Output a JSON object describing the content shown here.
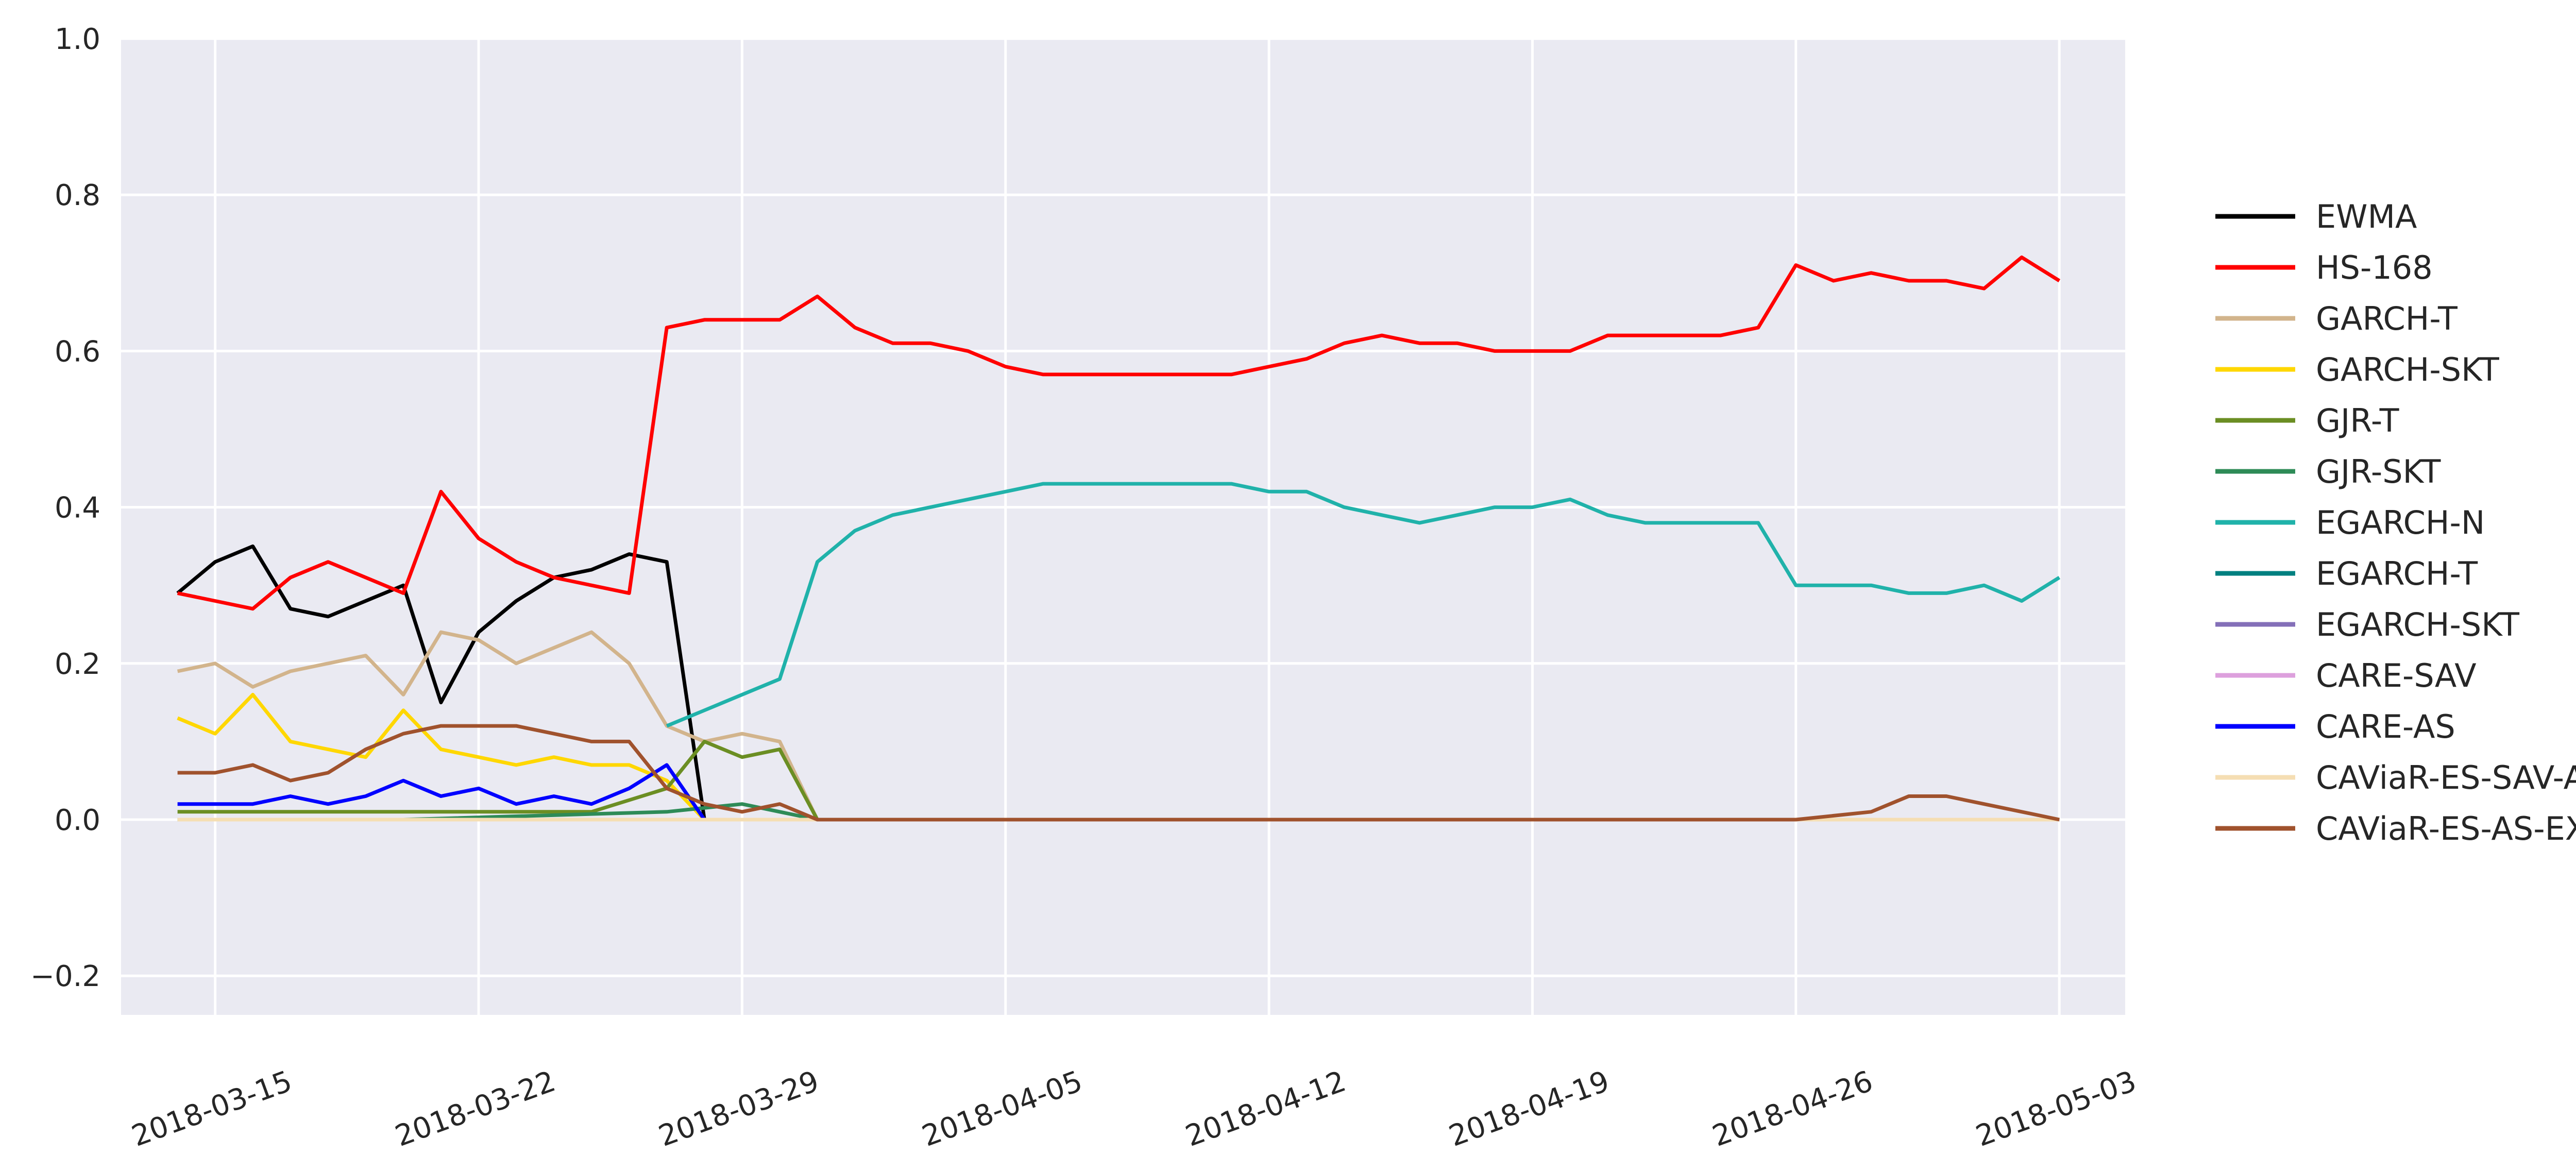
{
  "chart_data": {
    "type": "line",
    "title": "",
    "xlabel": "",
    "ylabel": "",
    "x_axis": {
      "type": "date",
      "range": [
        "2018-03-12T12:00",
        "2018-05-04T18:00"
      ],
      "ticks": [
        "2018-03-15",
        "2018-03-22",
        "2018-03-29",
        "2018-04-05",
        "2018-04-12",
        "2018-04-19",
        "2018-04-26",
        "2018-05-03"
      ]
    },
    "y_axis": {
      "range": [
        -0.25,
        1.0
      ],
      "ticks": [
        {
          "value": -0.2,
          "label": "−0.2"
        },
        {
          "value": 0.0,
          "label": "0.0"
        },
        {
          "value": 0.2,
          "label": "0.2"
        },
        {
          "value": 0.4,
          "label": "0.4"
        },
        {
          "value": 0.6,
          "label": "0.6"
        },
        {
          "value": 0.8,
          "label": "0.8"
        },
        {
          "value": 1.0,
          "label": "1.0"
        }
      ]
    },
    "grid": true,
    "style": {
      "plot_background": "#eaeaf2",
      "grid_color": "#ffffff"
    },
    "legend": {
      "placement": "right, outside plot"
    },
    "series": [
      {
        "name": "EWMA",
        "color": "#000000",
        "x": [
          "2018-03-14",
          "2018-03-15",
          "2018-03-16",
          "2018-03-17",
          "2018-03-18",
          "2018-03-19",
          "2018-03-20",
          "2018-03-21",
          "2018-03-22",
          "2018-03-23",
          "2018-03-24",
          "2018-03-25",
          "2018-03-26",
          "2018-03-27",
          "2018-03-28",
          "2018-03-29",
          "2018-04-05",
          "2018-04-12",
          "2018-04-19",
          "2018-04-26",
          "2018-05-03"
        ],
        "values": [
          0.29,
          0.33,
          0.35,
          0.27,
          0.26,
          0.28,
          0.3,
          0.15,
          0.24,
          0.28,
          0.31,
          0.32,
          0.34,
          0.33,
          0.0,
          0.0,
          0.0,
          0.0,
          0.0,
          0.0,
          0.0
        ]
      },
      {
        "name": "HS-168",
        "color": "#ff0000",
        "x": [
          "2018-03-14",
          "2018-03-15",
          "2018-03-16",
          "2018-03-17",
          "2018-03-18",
          "2018-03-19",
          "2018-03-20",
          "2018-03-21",
          "2018-03-22",
          "2018-03-23",
          "2018-03-24",
          "2018-03-25",
          "2018-03-26",
          "2018-03-27",
          "2018-03-28",
          "2018-03-29",
          "2018-03-30",
          "2018-03-31",
          "2018-04-01",
          "2018-04-02",
          "2018-04-03",
          "2018-04-04",
          "2018-04-05",
          "2018-04-06",
          "2018-04-07",
          "2018-04-08",
          "2018-04-09",
          "2018-04-10",
          "2018-04-11",
          "2018-04-12",
          "2018-04-13",
          "2018-04-14",
          "2018-04-15",
          "2018-04-16",
          "2018-04-17",
          "2018-04-18",
          "2018-04-19",
          "2018-04-20",
          "2018-04-21",
          "2018-04-22",
          "2018-04-23",
          "2018-04-24",
          "2018-04-25",
          "2018-04-26",
          "2018-04-27",
          "2018-04-28",
          "2018-04-29",
          "2018-04-30",
          "2018-05-01",
          "2018-05-02",
          "2018-05-03"
        ],
        "values": [
          0.29,
          0.28,
          0.27,
          0.31,
          0.33,
          0.31,
          0.29,
          0.42,
          0.36,
          0.33,
          0.31,
          0.3,
          0.29,
          0.63,
          0.64,
          0.64,
          0.64,
          0.67,
          0.63,
          0.61,
          0.61,
          0.6,
          0.58,
          0.57,
          0.57,
          0.57,
          0.57,
          0.57,
          0.57,
          0.58,
          0.59,
          0.61,
          0.62,
          0.61,
          0.61,
          0.6,
          0.6,
          0.6,
          0.62,
          0.62,
          0.62,
          0.62,
          0.63,
          0.71,
          0.69,
          0.7,
          0.69,
          0.69,
          0.68,
          0.72,
          0.69
        ]
      },
      {
        "name": "GARCH-T",
        "color": "#d2b48c",
        "x": [
          "2018-03-14",
          "2018-03-15",
          "2018-03-16",
          "2018-03-17",
          "2018-03-18",
          "2018-03-19",
          "2018-03-20",
          "2018-03-21",
          "2018-03-22",
          "2018-03-23",
          "2018-03-24",
          "2018-03-25",
          "2018-03-26",
          "2018-03-27",
          "2018-03-28",
          "2018-03-29",
          "2018-03-30",
          "2018-03-31",
          "2018-04-02",
          "2018-04-05",
          "2018-04-11",
          "2018-04-12",
          "2018-04-13",
          "2018-04-19",
          "2018-04-26",
          "2018-05-03"
        ],
        "values": [
          0.19,
          0.2,
          0.17,
          0.19,
          0.2,
          0.21,
          0.16,
          0.24,
          0.23,
          0.2,
          0.22,
          0.24,
          0.2,
          0.12,
          0.1,
          0.11,
          0.1,
          0.0,
          0.0,
          0.0,
          0.0,
          0.0,
          0.0,
          0.0,
          0.0,
          0.0
        ]
      },
      {
        "name": "GARCH-SKT",
        "color": "#ffd700",
        "x": [
          "2018-03-14",
          "2018-03-15",
          "2018-03-16",
          "2018-03-17",
          "2018-03-18",
          "2018-03-19",
          "2018-03-20",
          "2018-03-21",
          "2018-03-22",
          "2018-03-23",
          "2018-03-24",
          "2018-03-25",
          "2018-03-26",
          "2018-03-27",
          "2018-03-28",
          "2018-03-29",
          "2018-04-05",
          "2018-04-12",
          "2018-04-19",
          "2018-04-26",
          "2018-05-03"
        ],
        "values": [
          0.13,
          0.11,
          0.16,
          0.1,
          0.09,
          0.08,
          0.14,
          0.09,
          0.08,
          0.07,
          0.08,
          0.07,
          0.07,
          0.05,
          0.0,
          0.0,
          0.0,
          0.0,
          0.0,
          0.0,
          0.0
        ]
      },
      {
        "name": "GJR-T",
        "color": "#6b8e23",
        "x": [
          "2018-03-14",
          "2018-03-20",
          "2018-03-25",
          "2018-03-27",
          "2018-03-28",
          "2018-03-29",
          "2018-03-30",
          "2018-03-31",
          "2018-04-05",
          "2018-04-12",
          "2018-04-19",
          "2018-04-26",
          "2018-05-03"
        ],
        "values": [
          0.01,
          0.01,
          0.01,
          0.04,
          0.1,
          0.08,
          0.09,
          0.0,
          0.0,
          0.0,
          0.0,
          0.0,
          0.0
        ]
      },
      {
        "name": "GJR-SKT",
        "color": "#2e8b57",
        "x": [
          "2018-03-14",
          "2018-03-20",
          "2018-03-27",
          "2018-03-29",
          "2018-03-31",
          "2018-04-05",
          "2018-04-12",
          "2018-04-19",
          "2018-04-26",
          "2018-05-03"
        ],
        "values": [
          0.0,
          0.0,
          0.01,
          0.02,
          0.0,
          0.0,
          0.0,
          0.0,
          0.0,
          0.0
        ]
      },
      {
        "name": "EGARCH-N",
        "color": "#20b2aa",
        "x": [
          "2018-03-27",
          "2018-03-28",
          "2018-03-29",
          "2018-03-30",
          "2018-03-31",
          "2018-04-01",
          "2018-04-02",
          "2018-04-03",
          "2018-04-04",
          "2018-04-05",
          "2018-04-06",
          "2018-04-07",
          "2018-04-08",
          "2018-04-09",
          "2018-04-10",
          "2018-04-11",
          "2018-04-12",
          "2018-04-13",
          "2018-04-14",
          "2018-04-15",
          "2018-04-16",
          "2018-04-17",
          "2018-04-18",
          "2018-04-19",
          "2018-04-20",
          "2018-04-21",
          "2018-04-22",
          "2018-04-23",
          "2018-04-24",
          "2018-04-25",
          "2018-04-26",
          "2018-04-27",
          "2018-04-28",
          "2018-04-29",
          "2018-04-30",
          "2018-05-01",
          "2018-05-02",
          "2018-05-03"
        ],
        "values": [
          0.12,
          0.14,
          0.16,
          0.18,
          0.33,
          0.37,
          0.39,
          0.4,
          0.41,
          0.42,
          0.43,
          0.43,
          0.43,
          0.43,
          0.43,
          0.43,
          0.42,
          0.42,
          0.4,
          0.39,
          0.38,
          0.39,
          0.4,
          0.4,
          0.41,
          0.39,
          0.38,
          0.38,
          0.38,
          0.38,
          0.3,
          0.3,
          0.3,
          0.29,
          0.29,
          0.3,
          0.28,
          0.31
        ]
      },
      {
        "name": "EGARCH-T",
        "color": "#008080",
        "x": [
          "2018-03-27",
          "2018-05-03"
        ],
        "values": [
          0.0,
          0.0
        ]
      },
      {
        "name": "EGARCH-SKT",
        "color": "#8470b8",
        "x": [
          "2018-03-27",
          "2018-05-03"
        ],
        "values": [
          0.0,
          0.0
        ]
      },
      {
        "name": "CARE-SAV",
        "color": "#dda0dd",
        "x": [
          "2018-03-31",
          "2018-05-03"
        ],
        "values": [
          0.0,
          0.0
        ]
      },
      {
        "name": "CARE-AS",
        "color": "#0000ff",
        "x": [
          "2018-03-14",
          "2018-03-15",
          "2018-03-16",
          "2018-03-17",
          "2018-03-18",
          "2018-03-19",
          "2018-03-20",
          "2018-03-21",
          "2018-03-22",
          "2018-03-23",
          "2018-03-24",
          "2018-03-25",
          "2018-03-26",
          "2018-03-27",
          "2018-03-28",
          "2018-03-29",
          "2018-04-05",
          "2018-04-12",
          "2018-04-19",
          "2018-04-26",
          "2018-05-03"
        ],
        "values": [
          0.02,
          0.02,
          0.02,
          0.03,
          0.02,
          0.03,
          0.05,
          0.03,
          0.04,
          0.02,
          0.03,
          0.02,
          0.04,
          0.07,
          0.0,
          0.0,
          0.0,
          0.0,
          0.0,
          0.0,
          0.0
        ]
      },
      {
        "name": "CAViaR-ES-SAV-AR",
        "color": "#f5deb3",
        "x": [
          "2018-03-14",
          "2018-04-05",
          "2018-04-26",
          "2018-05-03"
        ],
        "values": [
          0.0,
          0.0,
          0.0,
          0.0
        ]
      },
      {
        "name": "CAViaR-ES-AS-EXP",
        "color": "#a0522d",
        "x": [
          "2018-03-14",
          "2018-03-15",
          "2018-03-16",
          "2018-03-17",
          "2018-03-18",
          "2018-03-19",
          "2018-03-20",
          "2018-03-21",
          "2018-03-22",
          "2018-03-23",
          "2018-03-24",
          "2018-03-25",
          "2018-03-26",
          "2018-03-27",
          "2018-03-28",
          "2018-03-29",
          "2018-03-30",
          "2018-03-31",
          "2018-04-05",
          "2018-04-12",
          "2018-04-19",
          "2018-04-26",
          "2018-04-28",
          "2018-04-29",
          "2018-04-30",
          "2018-05-01",
          "2018-05-02",
          "2018-05-03"
        ],
        "values": [
          0.06,
          0.06,
          0.07,
          0.05,
          0.06,
          0.09,
          0.11,
          0.12,
          0.12,
          0.12,
          0.11,
          0.1,
          0.1,
          0.04,
          0.02,
          0.01,
          0.02,
          0.0,
          0.0,
          0.0,
          0.0,
          0.0,
          0.01,
          0.03,
          0.03,
          0.02,
          0.01,
          0.0
        ]
      }
    ]
  }
}
